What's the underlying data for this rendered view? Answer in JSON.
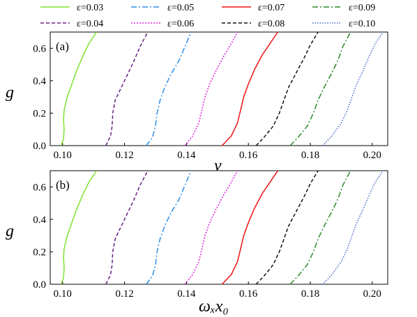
{
  "chart_data": [
    {
      "type": "line",
      "panel_label": "(a)",
      "xlabel": "v",
      "ylabel": "g",
      "xlim": [
        0.096,
        0.205
      ],
      "ylim": [
        0,
        0.7
      ],
      "xticks": [
        "0.10",
        "0.12",
        "0.14",
        "0.16",
        "0.18",
        "0.20"
      ],
      "yticks": [
        "0.0",
        "0.2",
        "0.4",
        "0.6"
      ],
      "series": [
        {
          "name": "ε=0.03",
          "color": "#7fe22f",
          "dash": "solid",
          "points": [
            [
              0.0995,
              0
            ],
            [
              0.1003,
              0.04
            ],
            [
              0.1005,
              0.1
            ],
            [
              0.1003,
              0.16
            ],
            [
              0.1005,
              0.22
            ],
            [
              0.1015,
              0.3
            ],
            [
              0.103,
              0.38
            ],
            [
              0.1045,
              0.46
            ],
            [
              0.1065,
              0.55
            ],
            [
              0.1085,
              0.63
            ],
            [
              0.111,
              0.7
            ]
          ]
        },
        {
          "name": "ε=0.04",
          "color": "#6a1f86",
          "dash": "5,3",
          "points": [
            [
              0.114,
              0
            ],
            [
              0.1155,
              0.06
            ],
            [
              0.116,
              0.12
            ],
            [
              0.1162,
              0.2
            ],
            [
              0.117,
              0.28
            ],
            [
              0.119,
              0.36
            ],
            [
              0.121,
              0.44
            ],
            [
              0.123,
              0.52
            ],
            [
              0.125,
              0.61
            ],
            [
              0.1275,
              0.7
            ]
          ]
        },
        {
          "name": "ε=0.05",
          "color": "#2e8ee8",
          "dash": "8,3,2,3",
          "points": [
            [
              0.127,
              0
            ],
            [
              0.129,
              0.05
            ],
            [
              0.13,
              0.12
            ],
            [
              0.1305,
              0.2
            ],
            [
              0.1315,
              0.28
            ],
            [
              0.133,
              0.36
            ],
            [
              0.135,
              0.44
            ],
            [
              0.1375,
              0.52
            ],
            [
              0.1395,
              0.61
            ],
            [
              0.1415,
              0.7
            ]
          ]
        },
        {
          "name": "ε=0.06",
          "color": "#e020e0",
          "dash": "2,2",
          "points": [
            [
              0.1395,
              0
            ],
            [
              0.142,
              0.06
            ],
            [
              0.144,
              0.14
            ],
            [
              0.145,
              0.22
            ],
            [
              0.146,
              0.3
            ],
            [
              0.1475,
              0.38
            ],
            [
              0.1495,
              0.46
            ],
            [
              0.152,
              0.55
            ],
            [
              0.1545,
              0.63
            ],
            [
              0.1565,
              0.7
            ]
          ]
        },
        {
          "name": "ε=0.07",
          "color": "#ee1111",
          "dash": "solid",
          "points": [
            [
              0.1515,
              0
            ],
            [
              0.1545,
              0.06
            ],
            [
              0.1565,
              0.14
            ],
            [
              0.1575,
              0.22
            ],
            [
              0.1585,
              0.3
            ],
            [
              0.16,
              0.38
            ],
            [
              0.162,
              0.47
            ],
            [
              0.1645,
              0.56
            ],
            [
              0.167,
              0.63
            ],
            [
              0.1695,
              0.7
            ]
          ]
        },
        {
          "name": "ε=0.08",
          "color": "#111111",
          "dash": "5,3",
          "points": [
            [
              0.1625,
              0
            ],
            [
              0.165,
              0.05
            ],
            [
              0.168,
              0.12
            ],
            [
              0.17,
              0.2
            ],
            [
              0.1715,
              0.28
            ],
            [
              0.173,
              0.36
            ],
            [
              0.1755,
              0.45
            ],
            [
              0.178,
              0.54
            ],
            [
              0.18,
              0.62
            ],
            [
              0.1825,
              0.7
            ]
          ]
        },
        {
          "name": "ε=0.09",
          "color": "#2a8a2a",
          "dash": "8,3,2,3",
          "points": [
            [
              0.1735,
              0
            ],
            [
              0.176,
              0.05
            ],
            [
              0.179,
              0.12
            ],
            [
              0.181,
              0.2
            ],
            [
              0.1825,
              0.28
            ],
            [
              0.1845,
              0.36
            ],
            [
              0.187,
              0.45
            ],
            [
              0.189,
              0.53
            ],
            [
              0.1905,
              0.61
            ],
            [
              0.193,
              0.7
            ]
          ]
        },
        {
          "name": "ε=0.10",
          "color": "#4466cc",
          "dash": "1.5,2",
          "points": [
            [
              0.184,
              0
            ],
            [
              0.187,
              0.06
            ],
            [
              0.19,
              0.14
            ],
            [
              0.192,
              0.22
            ],
            [
              0.1935,
              0.3
            ],
            [
              0.195,
              0.38
            ],
            [
              0.197,
              0.46
            ],
            [
              0.199,
              0.55
            ],
            [
              0.201,
              0.63
            ],
            [
              0.2035,
              0.7
            ]
          ]
        }
      ]
    },
    {
      "type": "line",
      "panel_label": "(b)",
      "xlabel": "ωₓx₀",
      "ylabel": "g",
      "xlim": [
        0.096,
        0.205
      ],
      "ylim": [
        0,
        0.7
      ],
      "xticks": [
        "0.10",
        "0.12",
        "0.14",
        "0.16",
        "0.18",
        "0.20"
      ],
      "yticks": [
        "0.0",
        "0.2",
        "0.4",
        "0.6"
      ],
      "series": [
        {
          "name": "ε=0.03",
          "color": "#7fe22f",
          "dash": "solid",
          "points": [
            [
              0.0995,
              0
            ],
            [
              0.1003,
              0.04
            ],
            [
              0.1005,
              0.1
            ],
            [
              0.1003,
              0.16
            ],
            [
              0.1005,
              0.22
            ],
            [
              0.1015,
              0.3
            ],
            [
              0.103,
              0.38
            ],
            [
              0.1045,
              0.46
            ],
            [
              0.1065,
              0.55
            ],
            [
              0.1085,
              0.63
            ],
            [
              0.111,
              0.7
            ]
          ]
        },
        {
          "name": "ε=0.04",
          "color": "#6a1f86",
          "dash": "5,3",
          "points": [
            [
              0.114,
              0
            ],
            [
              0.1155,
              0.06
            ],
            [
              0.116,
              0.12
            ],
            [
              0.1162,
              0.2
            ],
            [
              0.117,
              0.28
            ],
            [
              0.119,
              0.36
            ],
            [
              0.121,
              0.44
            ],
            [
              0.123,
              0.52
            ],
            [
              0.125,
              0.61
            ],
            [
              0.1275,
              0.7
            ]
          ]
        },
        {
          "name": "ε=0.05",
          "color": "#2e8ee8",
          "dash": "8,3,2,3",
          "points": [
            [
              0.127,
              0
            ],
            [
              0.129,
              0.05
            ],
            [
              0.13,
              0.12
            ],
            [
              0.1305,
              0.2
            ],
            [
              0.1315,
              0.28
            ],
            [
              0.133,
              0.36
            ],
            [
              0.135,
              0.44
            ],
            [
              0.1375,
              0.52
            ],
            [
              0.1395,
              0.61
            ],
            [
              0.1415,
              0.7
            ]
          ]
        },
        {
          "name": "ε=0.06",
          "color": "#e020e0",
          "dash": "2,2",
          "points": [
            [
              0.1395,
              0
            ],
            [
              0.142,
              0.06
            ],
            [
              0.144,
              0.14
            ],
            [
              0.145,
              0.22
            ],
            [
              0.146,
              0.3
            ],
            [
              0.1475,
              0.38
            ],
            [
              0.1495,
              0.46
            ],
            [
              0.152,
              0.55
            ],
            [
              0.1545,
              0.63
            ],
            [
              0.1565,
              0.7
            ]
          ]
        },
        {
          "name": "ε=0.07",
          "color": "#ee1111",
          "dash": "solid",
          "points": [
            [
              0.1515,
              0
            ],
            [
              0.1545,
              0.06
            ],
            [
              0.1565,
              0.14
            ],
            [
              0.1575,
              0.22
            ],
            [
              0.1585,
              0.3
            ],
            [
              0.16,
              0.38
            ],
            [
              0.162,
              0.47
            ],
            [
              0.1645,
              0.56
            ],
            [
              0.167,
              0.63
            ],
            [
              0.1695,
              0.7
            ]
          ]
        },
        {
          "name": "ε=0.08",
          "color": "#111111",
          "dash": "5,3",
          "points": [
            [
              0.1625,
              0
            ],
            [
              0.165,
              0.05
            ],
            [
              0.168,
              0.12
            ],
            [
              0.17,
              0.2
            ],
            [
              0.1715,
              0.28
            ],
            [
              0.173,
              0.36
            ],
            [
              0.1755,
              0.45
            ],
            [
              0.178,
              0.54
            ],
            [
              0.18,
              0.62
            ],
            [
              0.1825,
              0.7
            ]
          ]
        },
        {
          "name": "ε=0.09",
          "color": "#2a8a2a",
          "dash": "8,3,2,3",
          "points": [
            [
              0.1735,
              0
            ],
            [
              0.176,
              0.05
            ],
            [
              0.179,
              0.12
            ],
            [
              0.181,
              0.2
            ],
            [
              0.1825,
              0.28
            ],
            [
              0.1845,
              0.36
            ],
            [
              0.187,
              0.45
            ],
            [
              0.189,
              0.53
            ],
            [
              0.1905,
              0.61
            ],
            [
              0.193,
              0.7
            ]
          ]
        },
        {
          "name": "ε=0.10",
          "color": "#4466cc",
          "dash": "1.5,2",
          "points": [
            [
              0.184,
              0
            ],
            [
              0.187,
              0.06
            ],
            [
              0.19,
              0.14
            ],
            [
              0.192,
              0.22
            ],
            [
              0.1935,
              0.3
            ],
            [
              0.195,
              0.38
            ],
            [
              0.197,
              0.46
            ],
            [
              0.199,
              0.55
            ],
            [
              0.201,
              0.63
            ],
            [
              0.2035,
              0.7
            ]
          ]
        }
      ]
    }
  ]
}
